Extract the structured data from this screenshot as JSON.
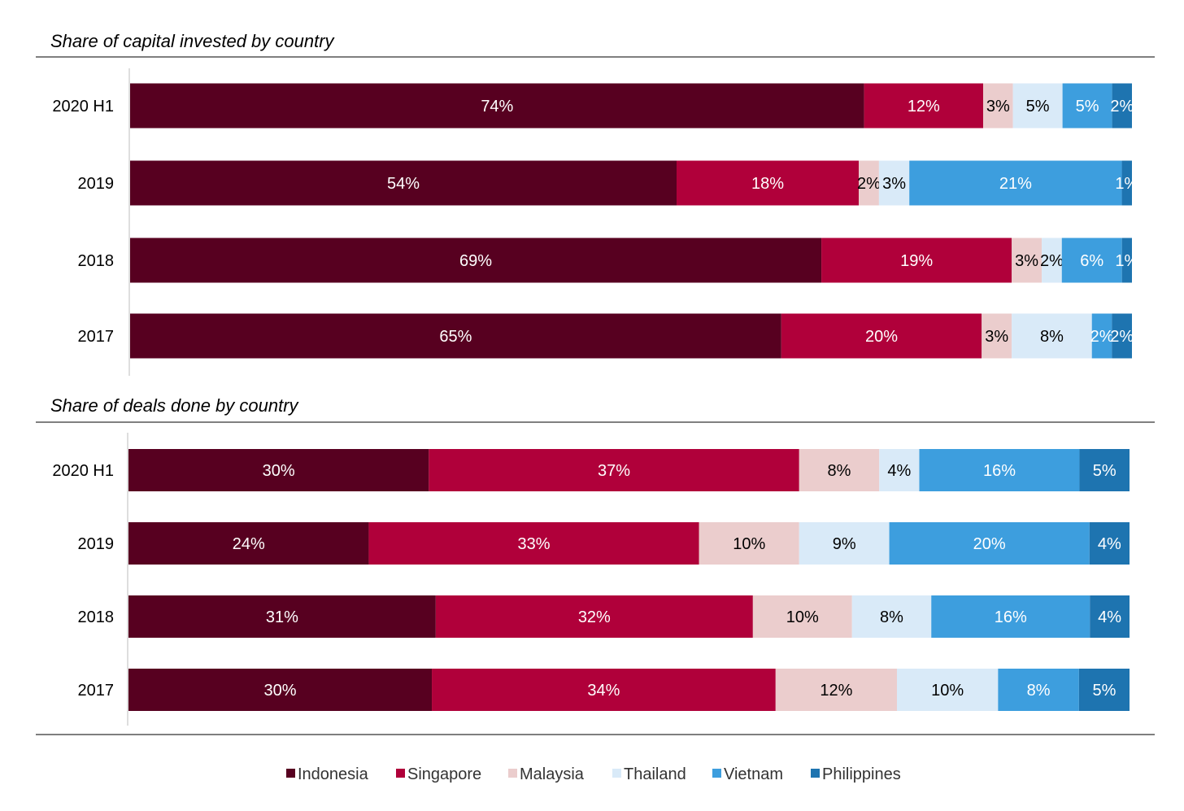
{
  "chart_data": [
    {
      "type": "bar",
      "orientation": "horizontal",
      "stacked": "percent",
      "title": "Share of capital invested by country",
      "categories": [
        "2020 H1",
        "2019",
        "2018",
        "2017"
      ],
      "series": [
        {
          "name": "Indonesia",
          "values": [
            74,
            54,
            69,
            65
          ],
          "labels": [
            "74%",
            "54%",
            "69%",
            "65%"
          ]
        },
        {
          "name": "Singapore",
          "values": [
            12,
            18,
            19,
            20
          ],
          "labels": [
            "12%",
            "18%",
            "19%",
            "20%"
          ]
        },
        {
          "name": "Malaysia",
          "values": [
            3,
            2,
            3,
            3
          ],
          "labels": [
            "3%",
            "2%",
            "3%",
            "3%"
          ]
        },
        {
          "name": "Thailand",
          "values": [
            5,
            3,
            2,
            8
          ],
          "labels": [
            "5%",
            "3%",
            "2%",
            "8%"
          ]
        },
        {
          "name": "Vietnam",
          "values": [
            5,
            21,
            6,
            2
          ],
          "labels": [
            "5%",
            "21%",
            "6%",
            "2%"
          ]
        },
        {
          "name": "Philippines",
          "values": [
            2,
            1,
            1,
            2
          ],
          "labels": [
            "2%",
            "1%",
            "1%",
            "2%"
          ]
        }
      ]
    },
    {
      "type": "bar",
      "orientation": "horizontal",
      "stacked": "percent",
      "title": "Share of deals done by country",
      "categories": [
        "2020 H1",
        "2019",
        "2018",
        "2017"
      ],
      "series": [
        {
          "name": "Indonesia",
          "values": [
            30,
            24,
            31,
            30
          ],
          "labels": [
            "30%",
            "24%",
            "31%",
            "30%"
          ]
        },
        {
          "name": "Singapore",
          "values": [
            37,
            33,
            32,
            34
          ],
          "labels": [
            "37%",
            "33%",
            "32%",
            "34%"
          ]
        },
        {
          "name": "Malaysia",
          "values": [
            8,
            10,
            10,
            12
          ],
          "labels": [
            "8%",
            "10%",
            "10%",
            "12%"
          ]
        },
        {
          "name": "Thailand",
          "values": [
            4,
            9,
            8,
            10
          ],
          "labels": [
            "4%",
            "9%",
            "8%",
            "10%"
          ]
        },
        {
          "name": "Vietnam",
          "values": [
            16,
            20,
            16,
            8
          ],
          "labels": [
            "16%",
            "20%",
            "16%",
            "8%"
          ]
        },
        {
          "name": "Philippines",
          "values": [
            5,
            4,
            4,
            5
          ],
          "labels": [
            "5%",
            "4%",
            "4%",
            "5%"
          ]
        }
      ]
    }
  ],
  "legend": {
    "position": "bottom-center",
    "items": [
      "Indonesia",
      "Singapore",
      "Malaysia",
      "Thailand",
      "Vietnam",
      "Philippines"
    ]
  },
  "colors": {
    "Indonesia": "#570020",
    "Singapore": "#B0003A",
    "Malaysia": "#EBCDCD",
    "Thailand": "#D9EAF8",
    "Vietnam": "#3D9EDE",
    "Philippines": "#1E74B0"
  },
  "label_colors": {
    "Indonesia": "#ffffff",
    "Singapore": "#ffffff",
    "Malaysia": "#000000",
    "Thailand": "#000000",
    "Vietnam": "#ffffff",
    "Philippines": "#ffffff"
  }
}
